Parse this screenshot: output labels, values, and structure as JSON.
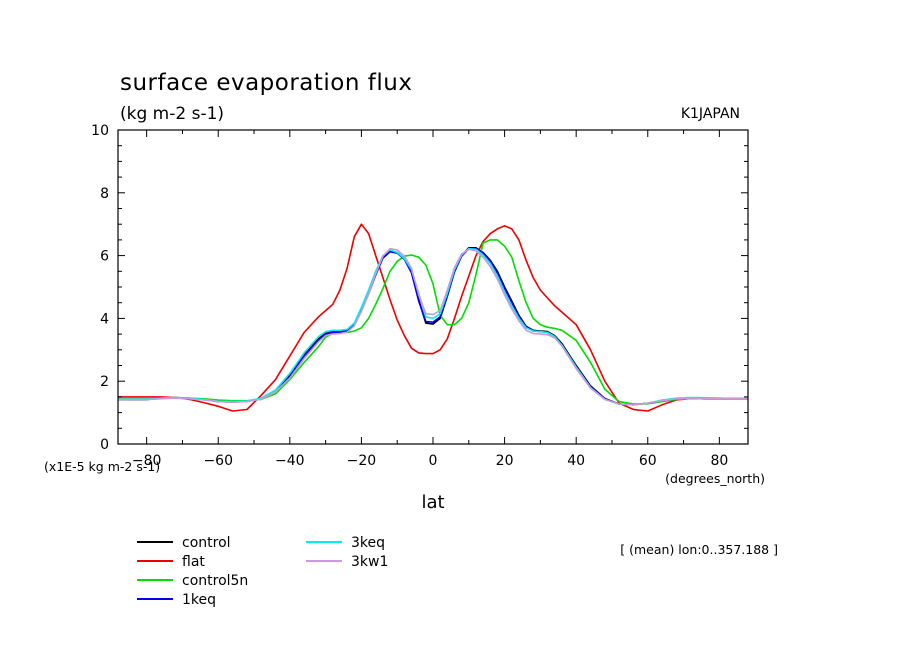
{
  "chart_data": {
    "type": "line",
    "title": "surface evaporation flux",
    "units_label": "(kg m-2 s-1)",
    "model_label": "K1JAPAN",
    "scale_label": "(x1E-5 kg m-2 s-1)",
    "xlabel": "lat",
    "xunits_label": "(degrees_north)",
    "mean_label": "[ (mean) lon:0..357.188 ]",
    "xlim": [
      -88,
      88
    ],
    "ylim": [
      0,
      10
    ],
    "xticks": [
      -80,
      -60,
      -40,
      -20,
      0,
      20,
      40,
      60,
      80
    ],
    "yticks": [
      0,
      2,
      4,
      6,
      8,
      10
    ],
    "x": [
      -88,
      -84,
      -80,
      -76,
      -72,
      -68,
      -64,
      -60,
      -56,
      -52,
      -48,
      -44,
      -40,
      -36,
      -32,
      -30,
      -28,
      -26,
      -24,
      -22,
      -20,
      -18,
      -16,
      -14,
      -12,
      -10,
      -8,
      -6,
      -4,
      -2,
      0,
      2,
      4,
      6,
      8,
      10,
      12,
      14,
      16,
      18,
      20,
      22,
      24,
      26,
      28,
      30,
      32,
      34,
      36,
      40,
      44,
      48,
      52,
      56,
      60,
      64,
      68,
      72,
      76,
      80,
      84,
      88
    ],
    "series": [
      {
        "name": "control",
        "color": "#000000",
        "values": [
          1.42,
          1.42,
          1.42,
          1.45,
          1.48,
          1.46,
          1.42,
          1.36,
          1.34,
          1.36,
          1.45,
          1.7,
          2.2,
          2.85,
          3.35,
          3.52,
          3.58,
          3.58,
          3.62,
          3.82,
          4.3,
          4.8,
          5.4,
          5.95,
          6.15,
          6.1,
          5.9,
          5.5,
          4.6,
          3.85,
          3.82,
          4.0,
          4.7,
          5.5,
          6.0,
          6.25,
          6.25,
          6.1,
          5.85,
          5.5,
          5.0,
          4.55,
          4.1,
          3.75,
          3.62,
          3.6,
          3.58,
          3.45,
          3.2,
          2.5,
          1.85,
          1.45,
          1.27,
          1.25,
          1.3,
          1.38,
          1.44,
          1.45,
          1.44,
          1.44,
          1.44,
          1.44
        ]
      },
      {
        "name": "flat",
        "color": "#ee0000",
        "values": [
          1.5,
          1.5,
          1.5,
          1.5,
          1.48,
          1.42,
          1.32,
          1.2,
          1.05,
          1.1,
          1.55,
          2.05,
          2.8,
          3.55,
          4.05,
          4.25,
          4.45,
          4.9,
          5.6,
          6.6,
          7.0,
          6.7,
          6.0,
          5.3,
          4.6,
          3.95,
          3.45,
          3.05,
          2.9,
          2.88,
          2.88,
          3.0,
          3.35,
          4.0,
          4.7,
          5.35,
          6.0,
          6.45,
          6.7,
          6.85,
          6.95,
          6.85,
          6.5,
          5.85,
          5.3,
          4.9,
          4.65,
          4.4,
          4.2,
          3.8,
          3.0,
          2.0,
          1.3,
          1.1,
          1.05,
          1.25,
          1.4,
          1.45,
          1.45,
          1.45,
          1.45,
          1.45
        ]
      },
      {
        "name": "control5n",
        "color": "#00dd00",
        "values": [
          1.44,
          1.44,
          1.44,
          1.46,
          1.48,
          1.46,
          1.44,
          1.4,
          1.38,
          1.38,
          1.42,
          1.6,
          2.05,
          2.6,
          3.1,
          3.4,
          3.52,
          3.55,
          3.55,
          3.6,
          3.7,
          4.0,
          4.45,
          4.95,
          5.5,
          5.82,
          5.98,
          6.02,
          5.95,
          5.7,
          5.1,
          4.1,
          3.8,
          3.8,
          4.0,
          4.5,
          5.4,
          6.4,
          6.5,
          6.5,
          6.3,
          5.95,
          5.2,
          4.5,
          4.0,
          3.8,
          3.72,
          3.68,
          3.62,
          3.3,
          2.6,
          1.75,
          1.35,
          1.27,
          1.28,
          1.35,
          1.42,
          1.45,
          1.46,
          1.46,
          1.45,
          1.45
        ]
      },
      {
        "name": "1keq",
        "color": "#0000ee",
        "values": [
          1.42,
          1.42,
          1.42,
          1.45,
          1.47,
          1.45,
          1.41,
          1.35,
          1.34,
          1.36,
          1.44,
          1.68,
          2.15,
          2.8,
          3.3,
          3.5,
          3.56,
          3.56,
          3.6,
          3.8,
          4.25,
          4.78,
          5.38,
          5.92,
          6.12,
          6.08,
          5.88,
          5.45,
          4.55,
          3.9,
          3.88,
          4.05,
          4.72,
          5.48,
          5.98,
          6.22,
          6.22,
          6.08,
          5.82,
          5.45,
          4.95,
          4.5,
          4.05,
          3.72,
          3.6,
          3.58,
          3.55,
          3.42,
          3.15,
          2.45,
          1.82,
          1.44,
          1.27,
          1.25,
          1.3,
          1.38,
          1.44,
          1.45,
          1.44,
          1.44,
          1.44,
          1.44
        ]
      },
      {
        "name": "3keq",
        "color": "#00eeee",
        "values": [
          1.43,
          1.43,
          1.43,
          1.46,
          1.48,
          1.46,
          1.42,
          1.36,
          1.35,
          1.37,
          1.46,
          1.72,
          2.25,
          2.9,
          3.42,
          3.58,
          3.62,
          3.62,
          3.65,
          3.85,
          4.35,
          4.9,
          5.5,
          6.0,
          6.18,
          6.1,
          5.9,
          5.55,
          4.8,
          4.05,
          4.0,
          4.15,
          4.8,
          5.55,
          6.02,
          6.22,
          6.2,
          6.02,
          5.75,
          5.35,
          4.85,
          4.4,
          4.0,
          3.7,
          3.6,
          3.58,
          3.55,
          3.42,
          3.15,
          2.45,
          1.8,
          1.42,
          1.27,
          1.25,
          1.3,
          1.4,
          1.46,
          1.48,
          1.47,
          1.46,
          1.45,
          1.45
        ]
      },
      {
        "name": "3kw1",
        "color": "#cc99dd",
        "values": [
          1.42,
          1.42,
          1.42,
          1.44,
          1.46,
          1.44,
          1.4,
          1.35,
          1.33,
          1.35,
          1.43,
          1.66,
          2.1,
          2.72,
          3.25,
          3.45,
          3.5,
          3.52,
          3.56,
          3.76,
          4.22,
          4.78,
          5.42,
          5.98,
          6.22,
          6.18,
          5.98,
          5.6,
          4.75,
          4.15,
          4.12,
          4.25,
          4.9,
          5.62,
          6.05,
          6.2,
          6.15,
          5.95,
          5.65,
          5.25,
          4.75,
          4.3,
          3.92,
          3.62,
          3.52,
          3.5,
          3.48,
          3.38,
          3.12,
          2.4,
          1.78,
          1.42,
          1.27,
          1.25,
          1.3,
          1.38,
          1.44,
          1.45,
          1.44,
          1.44,
          1.44,
          1.44
        ]
      }
    ]
  }
}
